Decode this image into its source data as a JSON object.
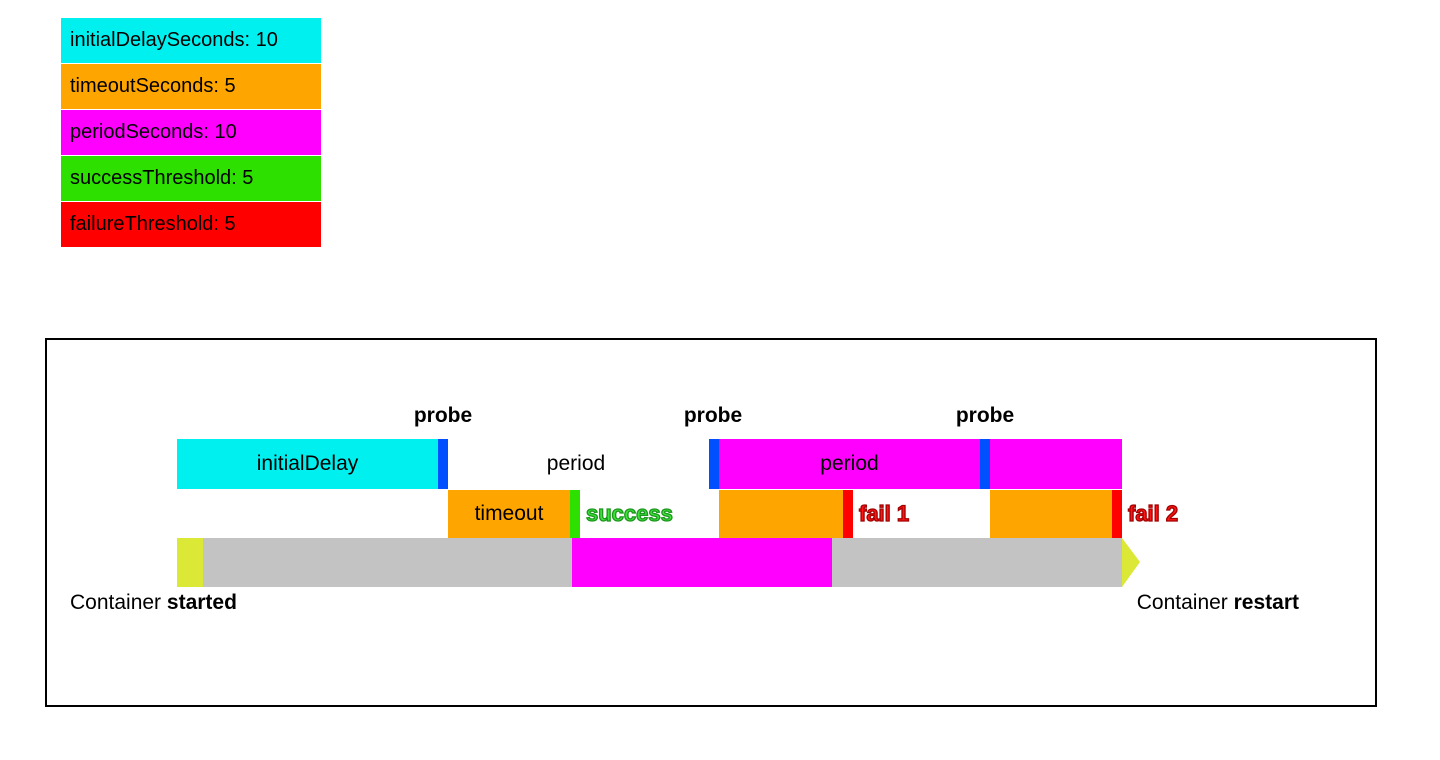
{
  "legend": {
    "items": [
      {
        "label": "initialDelaySeconds: 10",
        "color": "#00f0f0"
      },
      {
        "label": "timeoutSeconds: 5",
        "color": "#ffa500"
      },
      {
        "label": "periodSeconds: 10",
        "color": "#ff00ff"
      },
      {
        "label": "successThreshold: 5",
        "color": "#2de000"
      },
      {
        "label": "failureThreshold: 5",
        "color": "#ff0000"
      }
    ]
  },
  "diagram": {
    "probes": [
      "probe",
      "probe",
      "probe"
    ],
    "initial_delay_label": "initialDelay",
    "period_gap_label": "period",
    "period_bar_label": "period",
    "timeout_label": "timeout",
    "success_label": "success",
    "fail1_label": "fail 1",
    "fail2_label": "fail 2",
    "container_started": {
      "text": "Container ",
      "bold": "started"
    },
    "container_restart": {
      "text": "Container ",
      "bold": "restart"
    },
    "colors": {
      "initial_delay": "#00f0f0",
      "timeout": "#ffa500",
      "period": "#ff00ff",
      "success_tick": "#2de000",
      "fail_tick": "#ff0000",
      "probe_tick": "#0050ff",
      "timeline_gray": "#c3c3c3",
      "timeline_cap": "#dce836",
      "timeline_busy": "#ff00ff",
      "success_text": "#3ce43c",
      "success_outline": "#1c961c",
      "fail_text": "#ff1414",
      "fail_outline": "#a00000"
    }
  }
}
